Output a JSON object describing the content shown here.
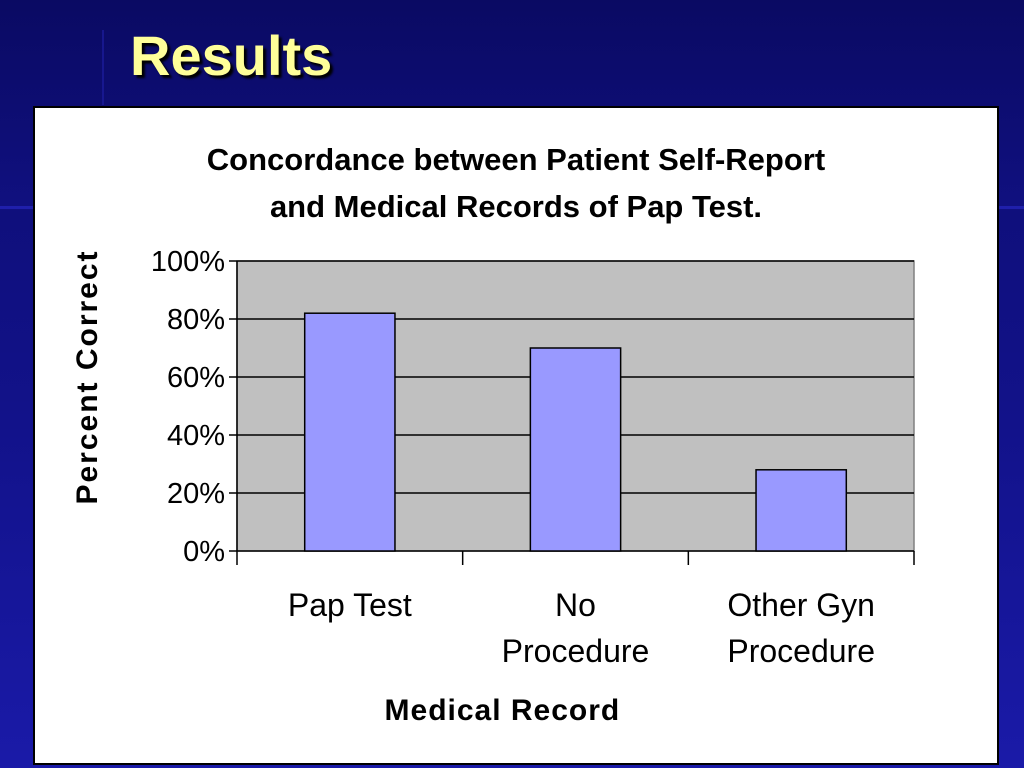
{
  "slide": {
    "title": "Results"
  },
  "colors": {
    "background": "#10107e",
    "title": "#ffff99",
    "panel": "#ffffff",
    "plot_area": "#c0c0c0",
    "bar_fill": "#9999ff",
    "bar_stroke": "#000000"
  },
  "chart_data": {
    "type": "bar",
    "title_lines": [
      "Concordance between Patient Self-Report",
      "and Medical Records of Pap Test."
    ],
    "categories": [
      [
        "Pap Test"
      ],
      [
        "No",
        "Procedure"
      ],
      [
        "Other Gyn",
        "Procedure"
      ]
    ],
    "values": [
      82,
      70,
      28
    ],
    "ylim": [
      0,
      100
    ],
    "y_ticks": [
      0,
      20,
      40,
      60,
      80,
      100
    ],
    "y_tick_suffix": "%",
    "xlabel": "Medical Record",
    "ylabel": "Percent Correct",
    "grid": true,
    "legend": "none"
  }
}
